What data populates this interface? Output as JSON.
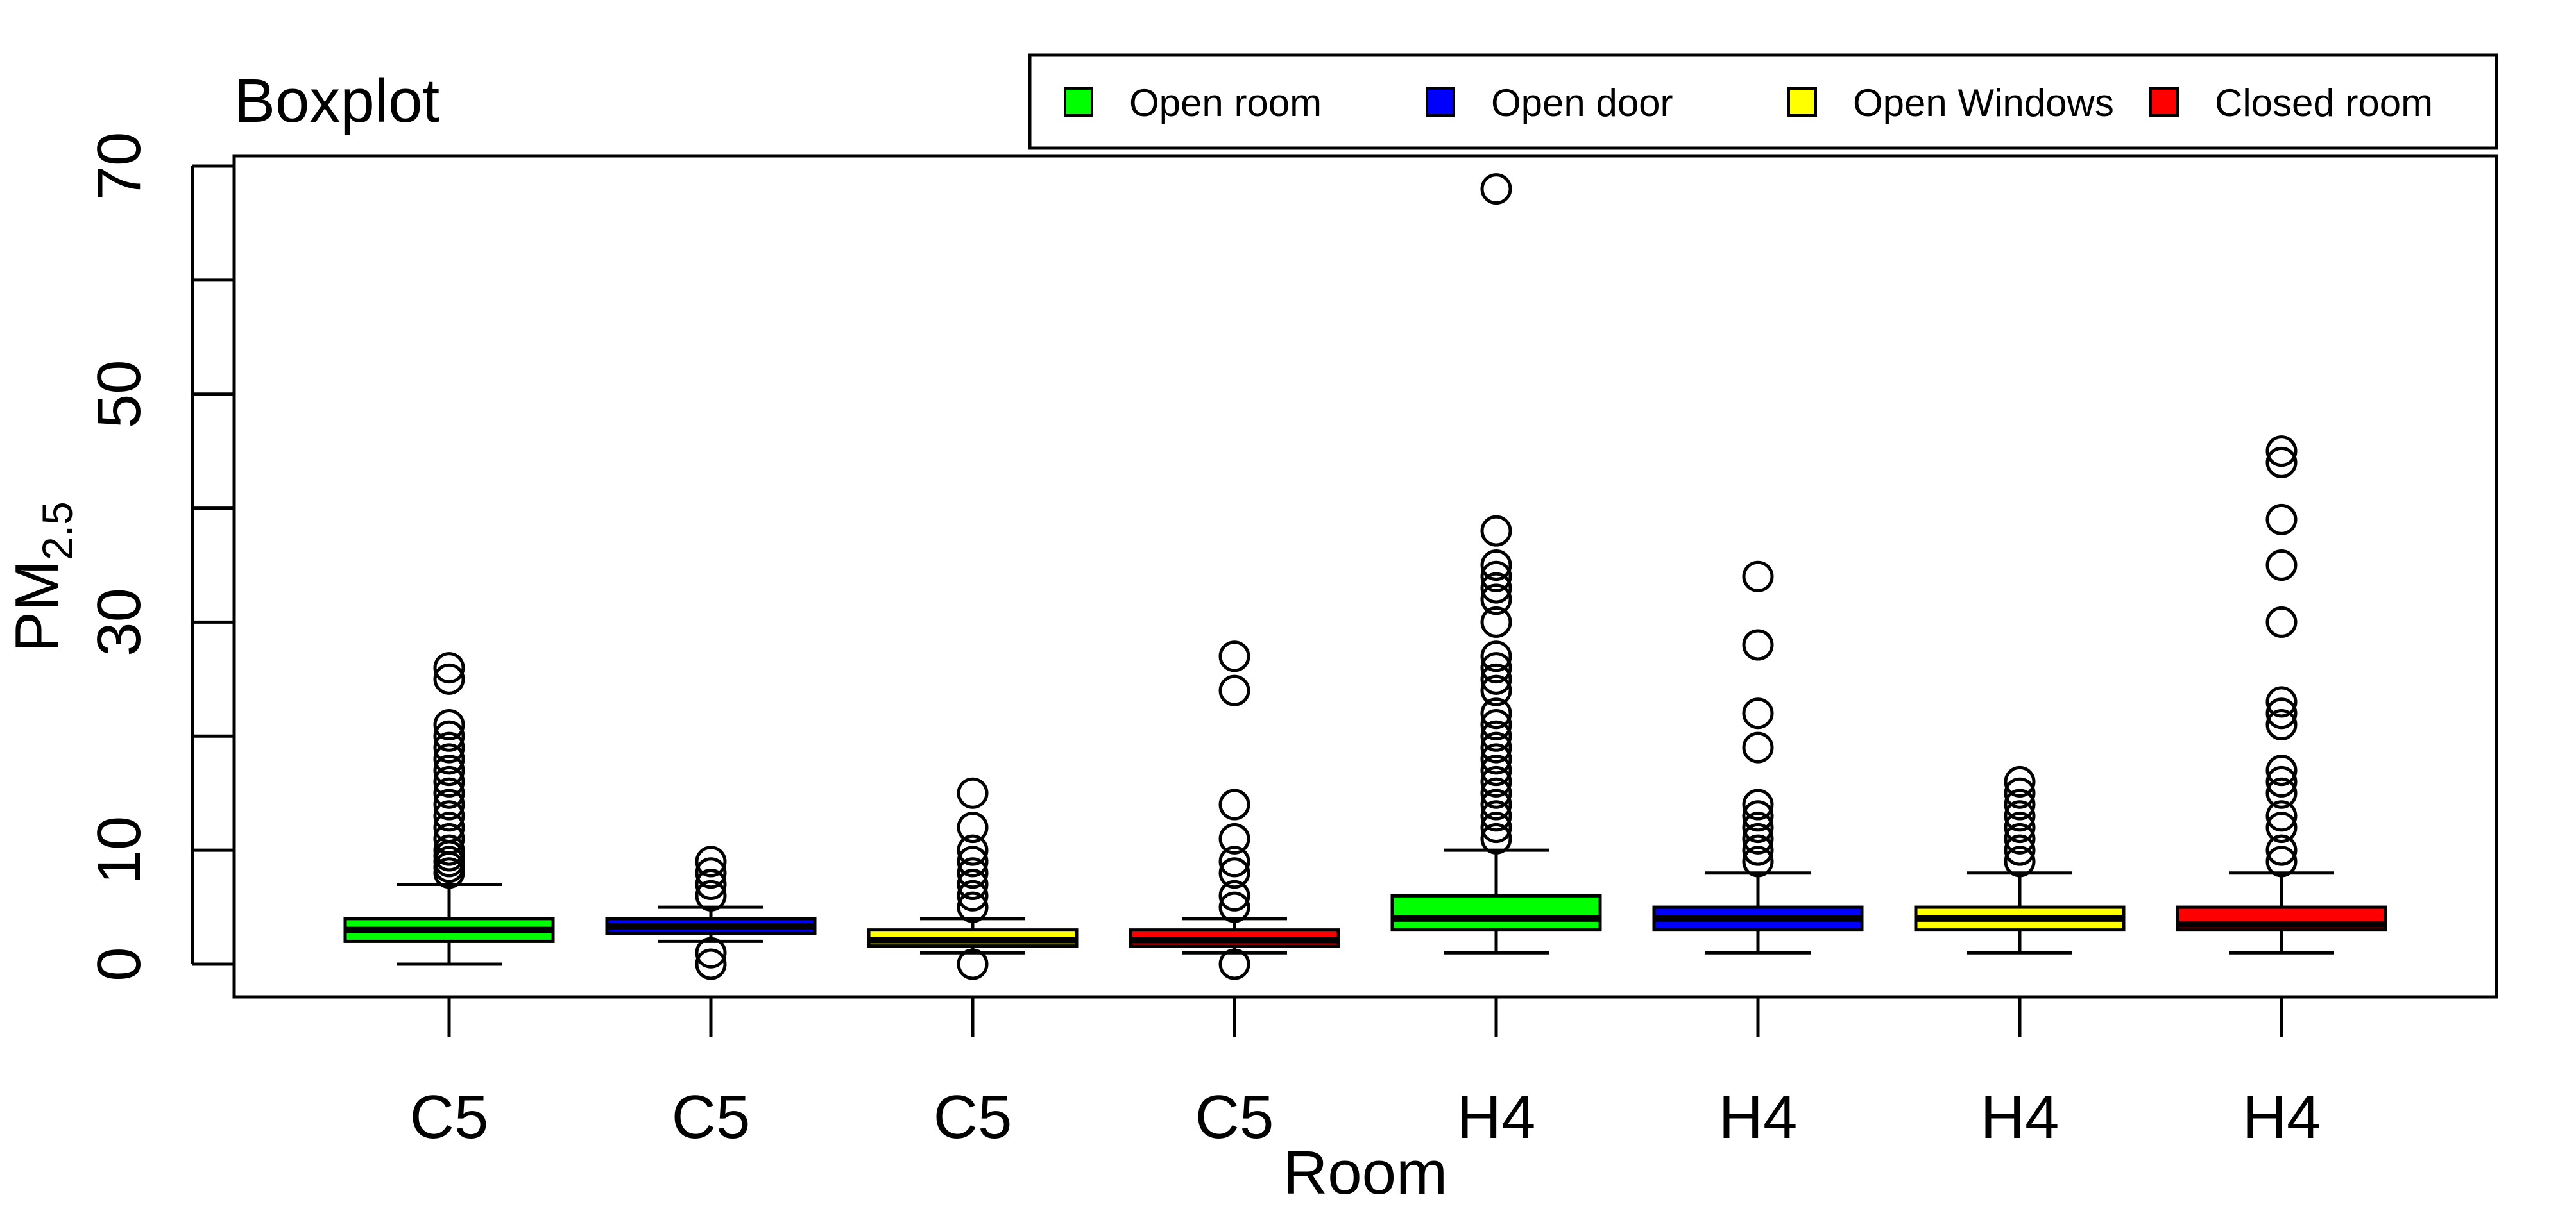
{
  "chart_data": {
    "type": "boxplot",
    "title": "Boxplot",
    "xlabel": "Room",
    "ylabel": {
      "base": "PM",
      "subscript": "2.5"
    },
    "ylim": [
      -3,
      70.5
    ],
    "yticks": [
      0,
      10,
      20,
      30,
      40,
      50,
      60,
      70
    ],
    "ytick_labels": [
      "0",
      "10",
      "",
      "30",
      "",
      "50",
      "",
      "70"
    ],
    "grid": false,
    "legend_position": "top-right",
    "legend": [
      {
        "label": "Open room",
        "color": "#00ff00"
      },
      {
        "label": "Open door",
        "color": "#0000ff"
      },
      {
        "label": "Open Windows",
        "color": "#ffff00"
      },
      {
        "label": "Closed room",
        "color": "#ff0000"
      }
    ],
    "categories": [
      "C5",
      "C5",
      "C5",
      "C5",
      "H4",
      "H4",
      "H4",
      "H4"
    ],
    "boxes": [
      {
        "category": "C5",
        "condition": "Open room",
        "color": "#00ff00",
        "whisker_low": 0,
        "q1": 2,
        "median": 3,
        "q3": 4,
        "whisker_high": 7,
        "outliers": [
          8,
          8.5,
          9,
          9.5,
          10,
          11,
          12,
          13,
          14,
          15,
          16,
          17,
          18,
          19,
          20,
          21,
          25,
          26
        ]
      },
      {
        "category": "C5",
        "condition": "Open door",
        "color": "#0000ff",
        "whisker_low": 2,
        "q1": 2.7,
        "median": 3.3,
        "q3": 4,
        "whisker_high": 5,
        "outliers": [
          0,
          1,
          6,
          7,
          8,
          9
        ]
      },
      {
        "category": "C5",
        "condition": "Open Windows",
        "color": "#ffff00",
        "whisker_low": 1,
        "q1": 1.6,
        "median": 2.1,
        "q3": 3,
        "whisker_high": 4,
        "outliers": [
          0,
          5,
          6,
          7,
          8,
          9,
          10,
          12,
          15
        ]
      },
      {
        "category": "C5",
        "condition": "Closed room",
        "color": "#ff0000",
        "whisker_low": 1,
        "q1": 1.6,
        "median": 2.1,
        "q3": 3,
        "whisker_high": 4,
        "outliers": [
          0,
          5,
          6,
          8,
          9,
          11,
          14,
          24,
          27
        ]
      },
      {
        "category": "H4",
        "condition": "Open room",
        "color": "#00ff00",
        "whisker_low": 1,
        "q1": 3,
        "median": 4,
        "q3": 6,
        "whisker_high": 10,
        "outliers": [
          11,
          12,
          13,
          14,
          15,
          16,
          17,
          18,
          19,
          20,
          21,
          22,
          24,
          25,
          26,
          27,
          30,
          32,
          33,
          34,
          35,
          38,
          68
        ]
      },
      {
        "category": "H4",
        "condition": "Open door",
        "color": "#0000ff",
        "whisker_low": 1,
        "q1": 3,
        "median": 4,
        "q3": 5,
        "whisker_high": 8,
        "outliers": [
          9,
          10,
          11,
          12,
          13,
          14,
          19,
          22,
          28,
          34
        ]
      },
      {
        "category": "H4",
        "condition": "Open Windows",
        "color": "#ffff00",
        "whisker_low": 1,
        "q1": 3,
        "median": 4,
        "q3": 5,
        "whisker_high": 8,
        "outliers": [
          9,
          10,
          11,
          12,
          13,
          14,
          15,
          16
        ]
      },
      {
        "category": "H4",
        "condition": "Closed room",
        "color": "#ff0000",
        "whisker_low": 1,
        "q1": 3,
        "median": 3.5,
        "q3": 5,
        "whisker_high": 8,
        "outliers": [
          9,
          10,
          12,
          13,
          15,
          16,
          17,
          21,
          22,
          23,
          30,
          35,
          39,
          44,
          45
        ]
      }
    ]
  }
}
